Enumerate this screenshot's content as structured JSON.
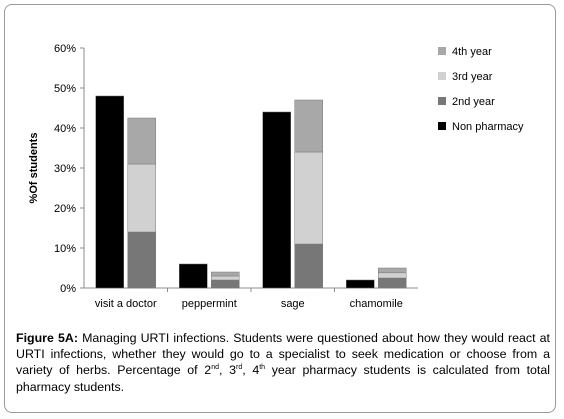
{
  "chart_data": {
    "type": "bar",
    "ylabel": "%Of students",
    "ylim": [
      0,
      60
    ],
    "yticks": [
      0,
      10,
      20,
      30,
      40,
      50,
      60
    ],
    "ytick_labels": [
      "0%",
      "10%",
      "20%",
      "30%",
      "40%",
      "50%",
      "60%"
    ],
    "categories": [
      "visit a doctor",
      "peppermint",
      "sage",
      "chamomile"
    ],
    "non_pharmacy": {
      "name": "Non pharmacy",
      "color": "#000000",
      "values": [
        48,
        6,
        44,
        2
      ]
    },
    "pharmacy_stack": [
      {
        "name": "2nd year",
        "color": "#777777",
        "values": [
          14,
          2,
          11,
          2.5
        ]
      },
      {
        "name": "3rd year",
        "color": "#d1d1d1",
        "values": [
          17,
          1,
          23,
          1.3
        ]
      },
      {
        "name": "4th year",
        "color": "#a8a8a8",
        "values": [
          11.5,
          1,
          13,
          1.2
        ]
      }
    ],
    "legend": [
      "4th year",
      "3rd year",
      "2nd year",
      "Non pharmacy"
    ],
    "legend_position": "right",
    "grid": false
  },
  "caption": {
    "lead": "Figure 5A:",
    "p1": " Managing URTI infections. Students were questioned about how they would react at URTI infections, whether they would go to a specialist to seek medication or choose from a variety of herbs. Percentage of 2",
    "sup1": "nd",
    "p2": ", 3",
    "sup2": "rd",
    "p3": ", 4",
    "sup3": "th",
    "p4": " year pharmacy students is calculated from total pharmacy students."
  }
}
